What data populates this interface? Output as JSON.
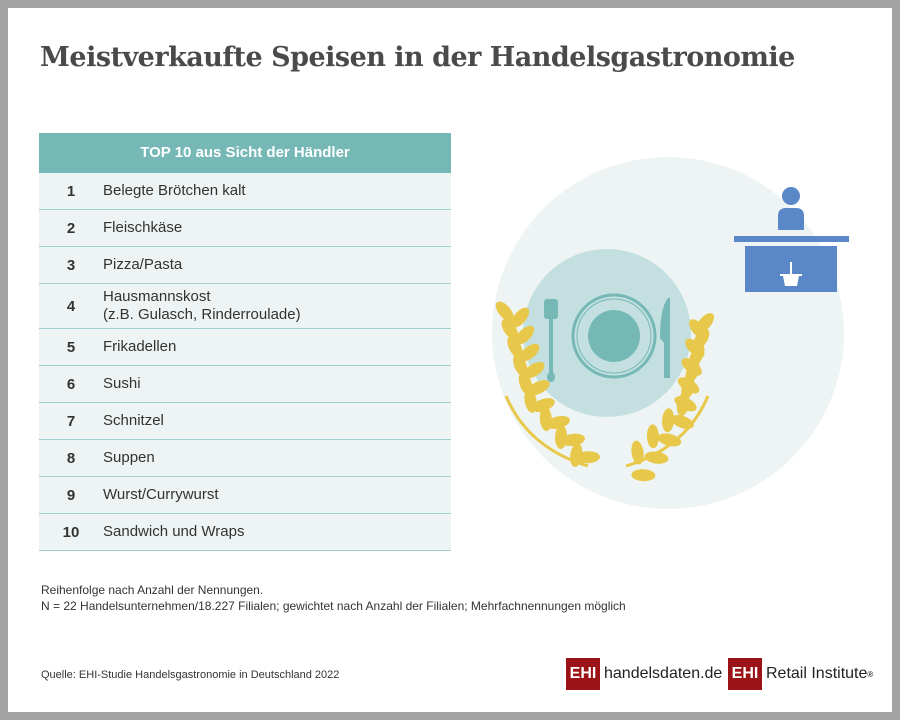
{
  "title": "Meistverkaufte Speisen in der Handelsgastronomie",
  "table": {
    "header": "TOP 10 aus Sicht der Händler",
    "rows": [
      {
        "rank": "1",
        "label": "Belegte Brötchen kalt"
      },
      {
        "rank": "2",
        "label": "Fleischkäse"
      },
      {
        "rank": "3",
        "label": "Pizza/Pasta"
      },
      {
        "rank": "4",
        "label": "Hausmannskost",
        "label2": "(z.B. Gulasch, Rinderroulade)"
      },
      {
        "rank": "5",
        "label": "Frikadellen"
      },
      {
        "rank": "6",
        "label": "Sushi"
      },
      {
        "rank": "7",
        "label": "Schnitzel"
      },
      {
        "rank": "8",
        "label": "Suppen"
      },
      {
        "rank": "9",
        "label": "Wurst/Currywurst"
      },
      {
        "rank": "10",
        "label": "Sandwich und Wraps"
      }
    ]
  },
  "notes": {
    "line1": "Reihenfolge nach Anzahl der Nennungen.",
    "line2": "N = 22 Handelsunternehmen/18.227 Filialen; gewichtet nach Anzahl der Filialen; Mehrfachnennungen möglich"
  },
  "source": "Quelle: EHI-Studie Handelsgastronomie in Deutschland 2022",
  "logos": {
    "ehi": "EHI",
    "handelsdaten": "handelsdaten.de",
    "retail": "Retail Institute",
    "reg": "®"
  },
  "colors": {
    "teal": "#75b8b6",
    "gold": "#e8c84a",
    "blue": "#5a87c8",
    "brand": "#9b1317"
  }
}
